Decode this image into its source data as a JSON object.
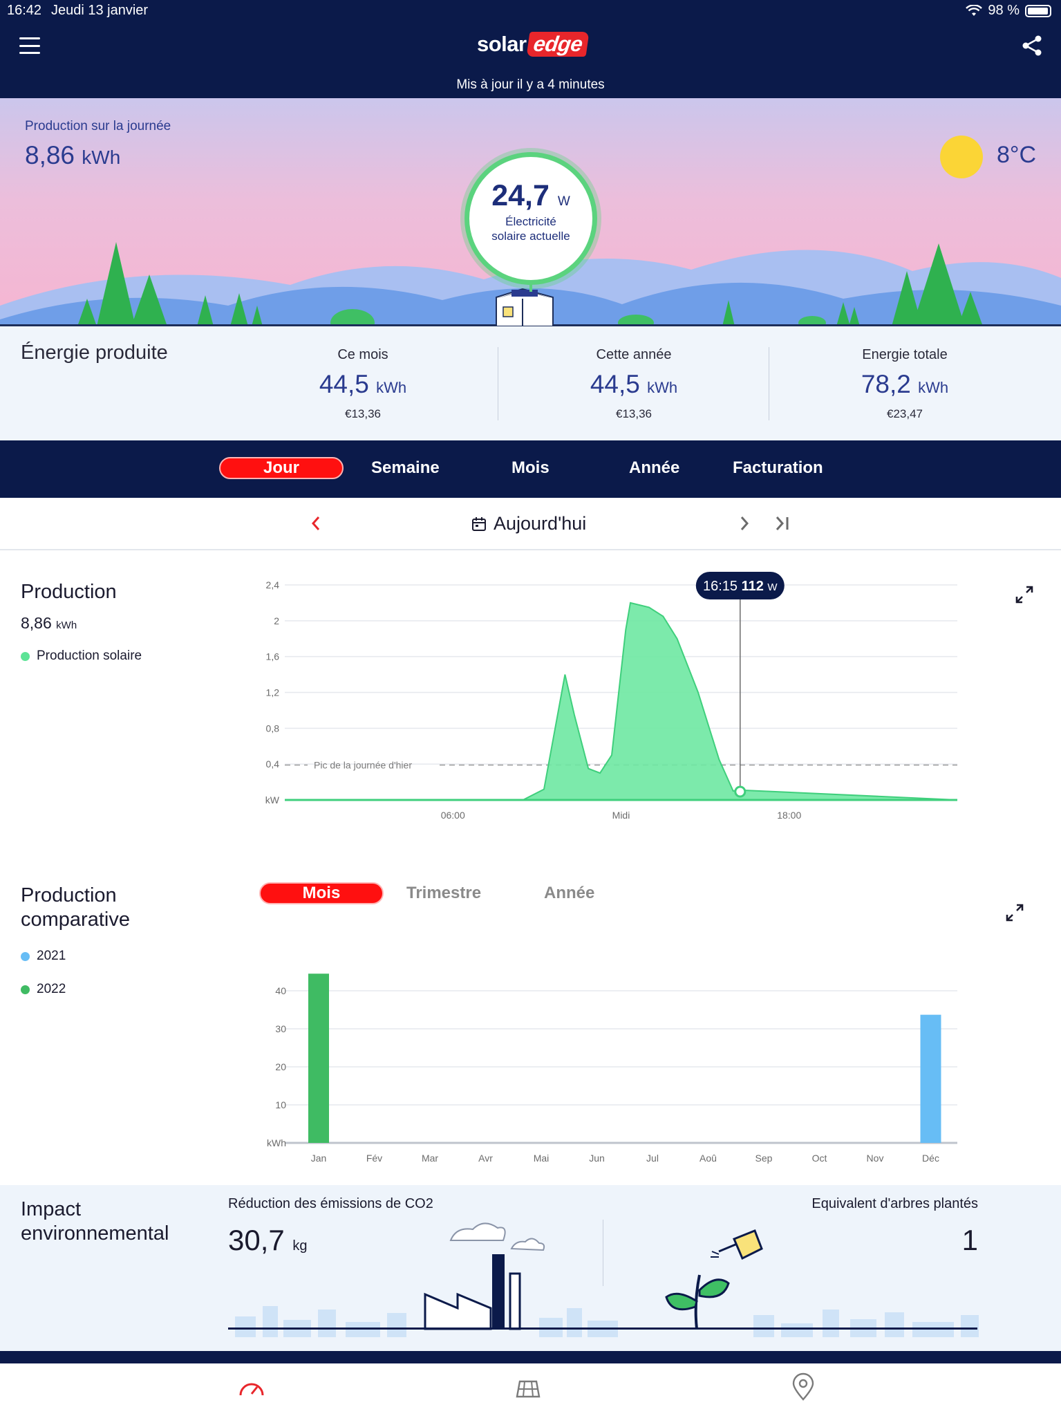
{
  "status_bar": {
    "time": "16:42",
    "date": "Jeudi 13 janvier",
    "battery": "98 %"
  },
  "header": {
    "logo_solar": "solar",
    "logo_edge": "edge",
    "updated": "Mis à jour il y a 4 minutes"
  },
  "hero": {
    "day_label": "Production sur la journée",
    "day_value": "8,86",
    "day_unit": "kWh",
    "temperature": "8°C",
    "current_power": "24,7",
    "current_unit": "W",
    "current_label_1": "Électricité",
    "current_label_2": "solaire actuelle"
  },
  "energy": {
    "title": "Énergie produite",
    "columns": [
      {
        "label": "Ce mois",
        "value": "44,5",
        "unit": "kWh",
        "money": "€13,36"
      },
      {
        "label": "Cette année",
        "value": "44,5",
        "unit": "kWh",
        "money": "€13,36"
      },
      {
        "label": "Energie totale",
        "value": "78,2",
        "unit": "kWh",
        "money": "€23,47"
      }
    ]
  },
  "tabs": [
    "Jour",
    "Semaine",
    "Mois",
    "Année",
    "Facturation"
  ],
  "active_tab": "Jour",
  "date_nav": {
    "label": "Aujourd'hui"
  },
  "production": {
    "title": "Production",
    "value": "8,86",
    "unit": "kWh",
    "legend": "Production solaire",
    "series_color": "#5de396",
    "tooltip_time": "16:15",
    "tooltip_value": "112",
    "tooltip_unit": "W",
    "reference_label": "Pic de la journée d'hier"
  },
  "chart_data": [
    {
      "type": "area",
      "title": "Production",
      "ylabel": "kW",
      "ylim": [
        0,
        2.4
      ],
      "yticks": [
        "2,4",
        "2",
        "1,6",
        "1,2",
        "0,8",
        "0,4",
        "kW"
      ],
      "xticks": [
        "06:00",
        "Midi",
        "18:00"
      ],
      "reference_line": {
        "label": "Pic de la journée d'hier",
        "value": 0.39
      },
      "series": [
        {
          "name": "Production solaire",
          "x": [
            "00:00",
            "05:00",
            "08:30",
            "09:15",
            "10:00",
            "10:20",
            "10:50",
            "11:15",
            "11:40",
            "12:10",
            "12:20",
            "13:00",
            "13:30",
            "14:00",
            "14:45",
            "15:30",
            "16:00",
            "16:15",
            "24:00"
          ],
          "values": [
            0,
            0,
            0,
            0.12,
            1.4,
            0.95,
            0.35,
            0.3,
            0.5,
            1.9,
            2.2,
            2.15,
            2.05,
            1.8,
            1.2,
            0.45,
            0.1,
            0.11,
            0
          ]
        }
      ],
      "tooltip": {
        "x": "16:15",
        "value": 112,
        "unit": "W"
      }
    },
    {
      "type": "bar",
      "title": "Production comparative",
      "ylabel": "kWh",
      "ylim": [
        0,
        45
      ],
      "yticks": [
        "40",
        "30",
        "20",
        "10",
        "kWh"
      ],
      "categories": [
        "Jan",
        "Fév",
        "Mar",
        "Avr",
        "Mai",
        "Jun",
        "Jul",
        "Aoû",
        "Sep",
        "Oct",
        "Nov",
        "Déc"
      ],
      "series": [
        {
          "name": "2021",
          "color": "#67bdf5",
          "values": [
            0,
            0,
            0,
            0,
            0,
            0,
            0,
            0,
            0,
            0,
            0,
            33.7
          ]
        },
        {
          "name": "2022",
          "color": "#3fbb63",
          "values": [
            44.5,
            0,
            0,
            0,
            0,
            0,
            0,
            0,
            0,
            0,
            0,
            0
          ]
        }
      ]
    }
  ],
  "comparative": {
    "title_line1": "Production",
    "title_line2": "comparative",
    "subtabs": [
      "Mois",
      "Trimestre",
      "Année"
    ],
    "active_subtab": "Mois",
    "legend": [
      {
        "label": "2021",
        "color": "#67bdf5"
      },
      {
        "label": "2022",
        "color": "#3fbb63"
      }
    ]
  },
  "environment": {
    "title_line1": "Impact",
    "title_line2": "environnemental",
    "co2_label": "Réduction des émissions de CO2",
    "co2_value": "30,7",
    "co2_unit": "kg",
    "trees_label": "Equivalent d'arbres plantés",
    "trees_value": "1"
  },
  "bottom_nav": [
    "dashboard-icon",
    "panels-layout-icon",
    "location-icon"
  ],
  "colors": {
    "navy": "#0b1a4a",
    "accent_red": "#ff1010",
    "brand_blue": "#2a3b8f"
  }
}
